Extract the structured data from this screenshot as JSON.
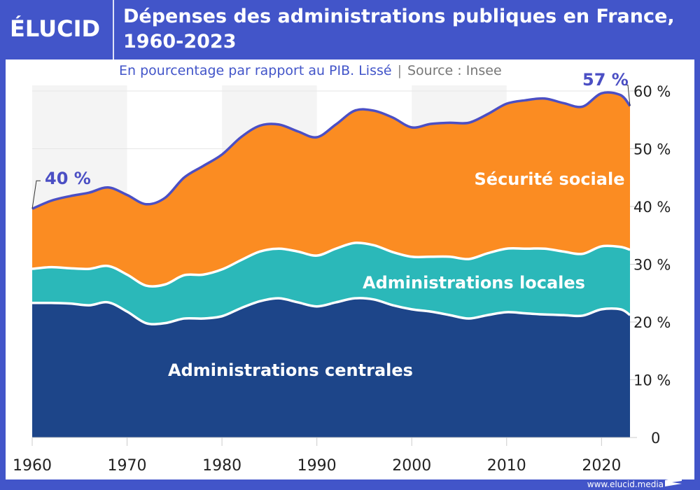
{
  "header": {
    "logo": "ÉLUCID",
    "title": "Dépenses des administrations publiques en France, 1960-2023",
    "subtitle": "En pourcentage par rapport au PIB. Lissé",
    "separator": "|",
    "source": "Source : Insee"
  },
  "footer": {
    "url": "www.elucid.media"
  },
  "colors": {
    "frame": "#4255c9",
    "central": "#1d4589",
    "local": "#2bb8b9",
    "social": "#fb8c22",
    "total_line": "#4b4fc4"
  },
  "chart_data": {
    "type": "area",
    "stacked": true,
    "smoothed": true,
    "title": "Dépenses des administrations publiques en France, 1960-2023",
    "subtitle": "En pourcentage par rapport au PIB. Lissé",
    "xlim": [
      1960,
      2023
    ],
    "ylim": [
      0,
      60
    ],
    "yticks": [
      "0",
      "10 %",
      "20 %",
      "30 %",
      "40 %",
      "50 %",
      "60 %"
    ],
    "xticks": [
      "1960",
      "1970",
      "1980",
      "1990",
      "2000",
      "2010",
      "2020"
    ],
    "grid": true,
    "x": [
      1960,
      1962,
      1964,
      1966,
      1968,
      1970,
      1972,
      1974,
      1976,
      1978,
      1980,
      1982,
      1984,
      1986,
      1988,
      1990,
      1992,
      1994,
      1996,
      1998,
      2000,
      2002,
      2004,
      2006,
      2008,
      2010,
      2012,
      2014,
      2016,
      2018,
      2020,
      2022,
      2023
    ],
    "series": [
      {
        "name": "Administrations centrales",
        "values": [
          23.3,
          23.3,
          23.2,
          22.9,
          23.4,
          21.8,
          19.8,
          19.8,
          20.6,
          20.6,
          21.0,
          22.4,
          23.6,
          24.1,
          23.4,
          22.7,
          23.4,
          24.1,
          23.9,
          22.9,
          22.2,
          21.8,
          21.2,
          20.6,
          21.2,
          21.7,
          21.5,
          21.3,
          21.2,
          21.1,
          22.2,
          22.2,
          21.2
        ]
      },
      {
        "name": "Administrations locales",
        "values": [
          5.9,
          6.2,
          6.1,
          6.3,
          6.3,
          6.4,
          6.5,
          6.7,
          7.5,
          7.6,
          8.1,
          8.3,
          8.6,
          8.6,
          8.8,
          8.8,
          9.3,
          9.6,
          9.4,
          9.2,
          9.1,
          9.5,
          10.1,
          10.3,
          10.7,
          11.0,
          11.2,
          11.4,
          11.0,
          10.7,
          10.9,
          10.8,
          11.3
        ]
      },
      {
        "name": "Sécurité sociale",
        "values": [
          10.4,
          11.5,
          12.5,
          13.2,
          13.6,
          13.8,
          14.1,
          15.0,
          16.9,
          18.8,
          19.9,
          21.3,
          21.8,
          21.5,
          20.8,
          20.5,
          21.5,
          22.9,
          23.3,
          23.3,
          22.4,
          23.0,
          23.2,
          23.6,
          24.1,
          25.1,
          25.7,
          26.0,
          25.7,
          25.5,
          26.5,
          26.3,
          24.9
        ]
      }
    ],
    "annotations": [
      {
        "x": 1960,
        "label": "40 %"
      },
      {
        "x": 2023,
        "label": "57 %"
      }
    ]
  }
}
